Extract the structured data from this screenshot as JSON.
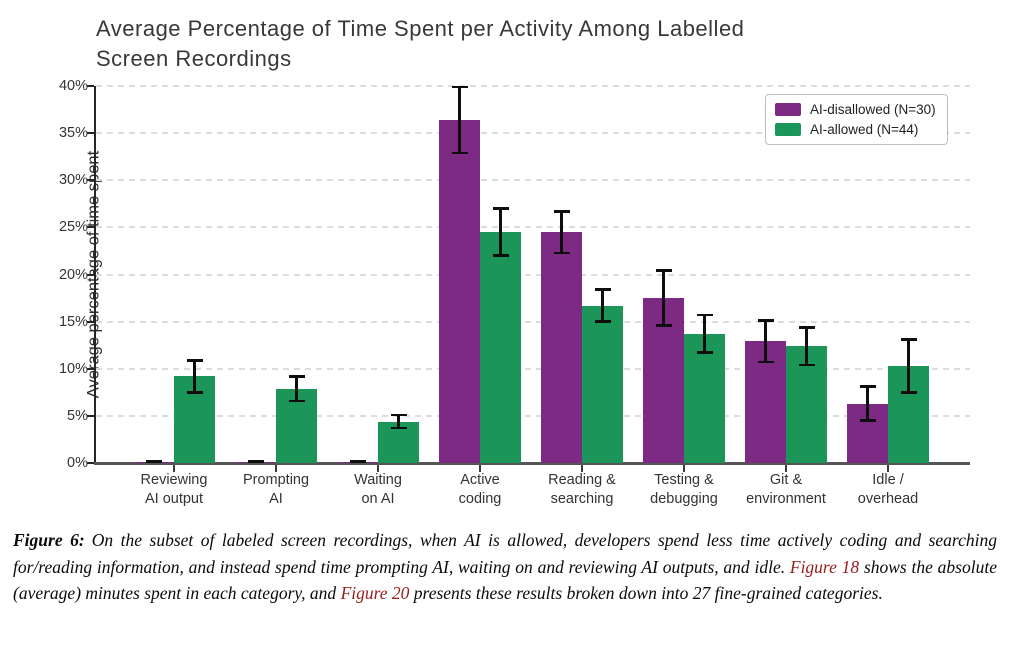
{
  "title": "Average Percentage of Time Spent per Activity Among Labelled Screen Recordings",
  "chart_data": {
    "type": "bar",
    "title": "Average Percentage of Time Spent per Activity Among Labelled Screen Recordings",
    "xlabel": "",
    "ylabel": "Average percentage of time spent",
    "ylim": [
      0,
      40
    ],
    "ytick_step": 5,
    "ytick_labels": [
      "0%",
      "5%",
      "10%",
      "15%",
      "20%",
      "25%",
      "30%",
      "35%",
      "40%"
    ],
    "grid": "dashed-horizontal",
    "legend_position": "upper-right",
    "categories": [
      "Reviewing\nAI output",
      "Prompting\nAI",
      "Waiting\non AI",
      "Active\ncoding",
      "Reading &\nsearching",
      "Testing &\ndebugging",
      "Git &\nenvironment",
      "Idle /\noverhead"
    ],
    "series": [
      {
        "name": "AI-disallowed (N=30)",
        "color": "#7D2A84",
        "values": [
          0.1,
          0.1,
          0.1,
          36.4,
          24.5,
          17.5,
          12.9,
          6.3
        ],
        "errors": [
          0.1,
          0.1,
          0.1,
          3.5,
          2.2,
          2.9,
          2.2,
          1.8
        ]
      },
      {
        "name": "AI-allowed (N=44)",
        "color": "#1C9658",
        "values": [
          9.2,
          7.9,
          4.4,
          24.5,
          16.7,
          13.7,
          12.4,
          10.3
        ],
        "errors": [
          1.7,
          1.3,
          0.7,
          2.5,
          1.7,
          2.0,
          2.0,
          2.8
        ]
      }
    ]
  },
  "caption": {
    "label": "Figure 6:",
    "text_1": "On the subset of labeled screen recordings, when AI is allowed, developers spend less time actively coding and searching for/reading information, and instead spend time prompting AI, waiting on and reviewing AI outputs, and idle. ",
    "link_1": "Figure 18",
    "text_2": " shows the absolute (average) minutes spent in each category, and ",
    "link_2": "Figure 20",
    "text_3": " presents these results broken down into 27 fine-grained categories."
  },
  "colors": {
    "ai_disallowed": "#7D2A84",
    "ai_allowed": "#1C9658",
    "error_bar": "#0e0e0e",
    "gridline": "#dcdcdc",
    "axis_spine": "#262626",
    "caption_link": "#96201C",
    "title_text": "#383838"
  }
}
